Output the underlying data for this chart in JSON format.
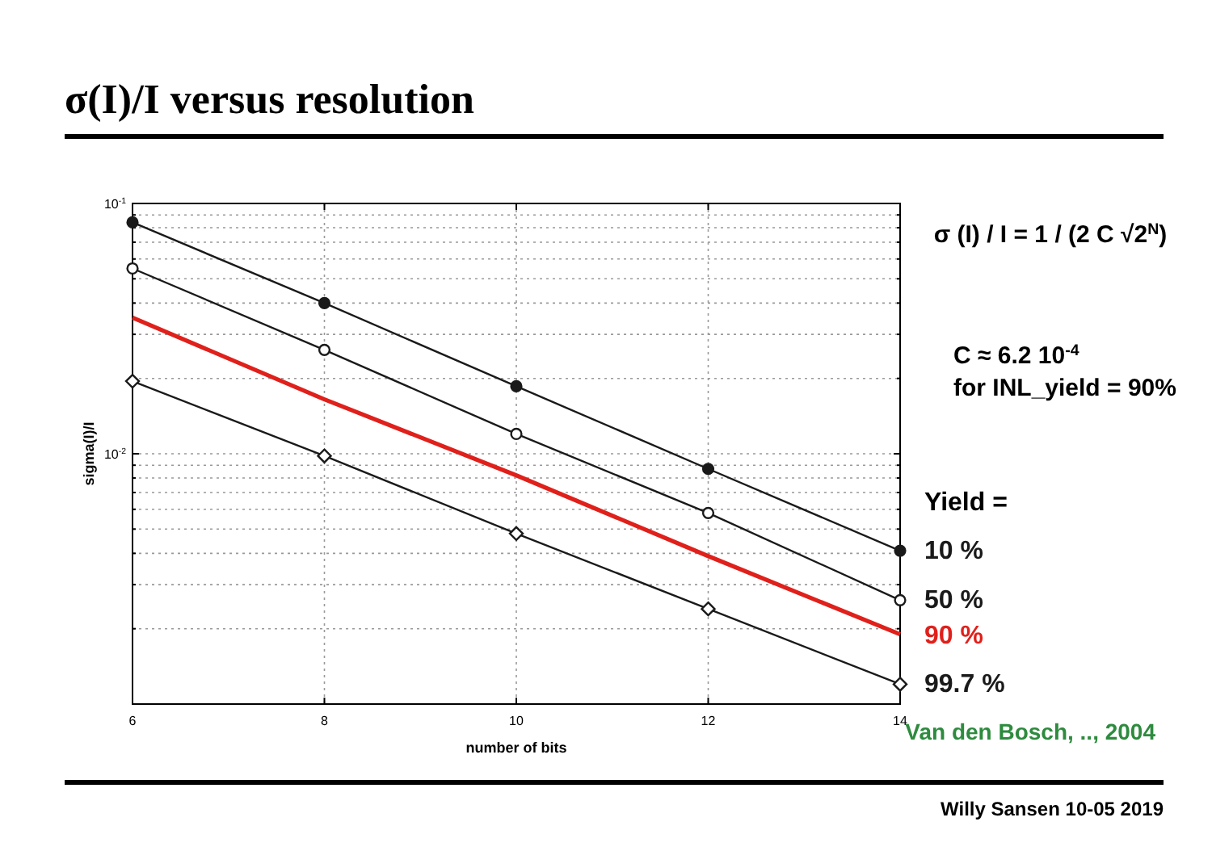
{
  "chart_data": {
    "type": "line",
    "title": "σ(I)/I versus resolution",
    "xlabel": "number of bits",
    "ylabel": "sigma(I)/I",
    "legend_title": "Yield =",
    "legend": "right",
    "log": "y",
    "grid": true,
    "line_style": "solid",
    "x": [
      6,
      8,
      10,
      12,
      14
    ],
    "xlim": [
      6,
      14
    ],
    "xticks": [
      6,
      8,
      10,
      12,
      14
    ],
    "ylim": [
      0.001,
      0.1
    ],
    "yticks": [
      {
        "value": 0.001,
        "label": null
      },
      {
        "value": 0.002,
        "label": null
      },
      {
        "value": 0.003,
        "label": null
      },
      {
        "value": 0.004,
        "label": null
      },
      {
        "value": 0.005,
        "label": null
      },
      {
        "value": 0.006,
        "label": null
      },
      {
        "value": 0.007,
        "label": null
      },
      {
        "value": 0.008,
        "label": null
      },
      {
        "value": 0.009,
        "label": null
      },
      {
        "value": 0.01,
        "label": "10$^{-2}$"
      },
      {
        "value": 0.02,
        "label": null
      },
      {
        "value": 0.03,
        "label": null
      },
      {
        "value": 0.04,
        "label": null
      },
      {
        "value": 0.05,
        "label": null
      },
      {
        "value": 0.06,
        "label": null
      },
      {
        "value": 0.07,
        "label": null
      },
      {
        "value": 0.08,
        "label": null
      },
      {
        "value": 0.09,
        "label": null
      },
      {
        "value": 0.1,
        "label": "10$^{-1}$"
      }
    ],
    "series": [
      {
        "name": "10 %",
        "color": "#1a1a1a",
        "marker": "circle",
        "values": [
          0.084,
          0.04,
          0.0186,
          0.0087,
          0.0041
        ]
      },
      {
        "name": "50 %",
        "color": "#1a1a1a",
        "marker": "circle",
        "values": [
          0.055,
          0.026,
          0.012,
          0.0058,
          0.0026
        ]
      },
      {
        "name": "90 %",
        "color": "#e0201b",
        "marker": "none",
        "values": [
          0.035,
          0.0165,
          0.0082,
          0.0039,
          0.0019
        ]
      },
      {
        "name": "99.7 %",
        "color": "#1a1a1a",
        "marker": "diamond",
        "values": [
          0.0195,
          0.0098,
          0.0048,
          0.0024,
          0.0012
        ]
      }
    ],
    "annotations": [
      "σ (I) / I = 1 / (2 C √2$^{N}$)",
      "C ≈ 6.2 10$^{-4}$",
      "for INL_yield = 90%",
      "Van den Bosch, .., 2004",
      "Willy Sansen 10-05 2019"
    ]
  }
}
